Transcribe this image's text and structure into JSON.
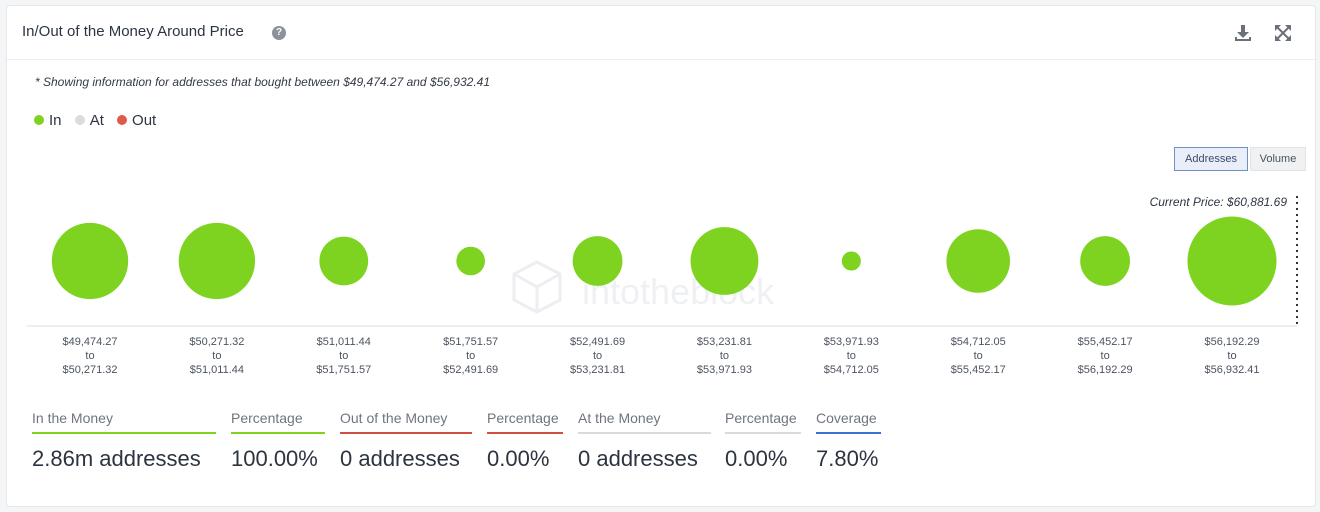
{
  "header": {
    "title": "In/Out of the Money Around Price",
    "help_icon": "?"
  },
  "note": "* Showing information for addresses that bought between $49,474.27 and $56,932.41",
  "legend": [
    {
      "label": "In",
      "color": "#7ed321"
    },
    {
      "label": "At",
      "color": "#dcdcdc"
    },
    {
      "label": "Out",
      "color": "#e05a47"
    }
  ],
  "toggle": {
    "addresses": "Addresses",
    "volume": "Volume"
  },
  "watermark": "intotheblock",
  "chart_data": {
    "type": "bubble",
    "title": "In/Out of the Money Around Price",
    "current_price_label": "Current Price: $60,881.69",
    "categories": [
      {
        "from": "$49,474.27",
        "to_word": "to",
        "to": "$50,271.32",
        "status": "in",
        "size": 0.72
      },
      {
        "from": "$50,271.32",
        "to_word": "to",
        "to": "$51,011.44",
        "status": "in",
        "size": 0.72
      },
      {
        "from": "$51,011.44",
        "to_word": "to",
        "to": "$51,751.57",
        "status": "in",
        "size": 0.46
      },
      {
        "from": "$51,751.57",
        "to_word": "to",
        "to": "$52,491.69",
        "status": "in",
        "size": 0.27
      },
      {
        "from": "$52,491.69",
        "to_word": "to",
        "to": "$53,231.81",
        "status": "in",
        "size": 0.47
      },
      {
        "from": "$53,231.81",
        "to_word": "to",
        "to": "$53,971.93",
        "status": "in",
        "size": 0.64
      },
      {
        "from": "$53,971.93",
        "to_word": "to",
        "to": "$54,712.05",
        "status": "in",
        "size": 0.18
      },
      {
        "from": "$54,712.05",
        "to_word": "to",
        "to": "$55,452.17",
        "status": "in",
        "size": 0.6
      },
      {
        "from": "$55,452.17",
        "to_word": "to",
        "to": "$56,192.29",
        "status": "in",
        "size": 0.47
      },
      {
        "from": "$56,192.29",
        "to_word": "to",
        "to": "$56,932.41",
        "status": "in",
        "size": 0.84
      }
    ],
    "colors": {
      "in": "#7ed321",
      "at": "#dcdcdc",
      "out": "#e05a47"
    }
  },
  "stats": [
    {
      "label": "In the Money",
      "value": "2.86m addresses",
      "color": "#7ed321"
    },
    {
      "label": "Percentage",
      "value": "100.00%",
      "color": "#7ed321"
    },
    {
      "label": "Out of the Money",
      "value": "0 addresses",
      "color": "#d0503f"
    },
    {
      "label": "Percentage",
      "value": "0.00%",
      "color": "#d0503f"
    },
    {
      "label": "At the Money",
      "value": "0 addresses",
      "color": "#d8dade"
    },
    {
      "label": "Percentage",
      "value": "0.00%",
      "color": "#d8dade"
    },
    {
      "label": "Coverage",
      "value": "7.80%",
      "color": "#3b6fd1"
    }
  ]
}
